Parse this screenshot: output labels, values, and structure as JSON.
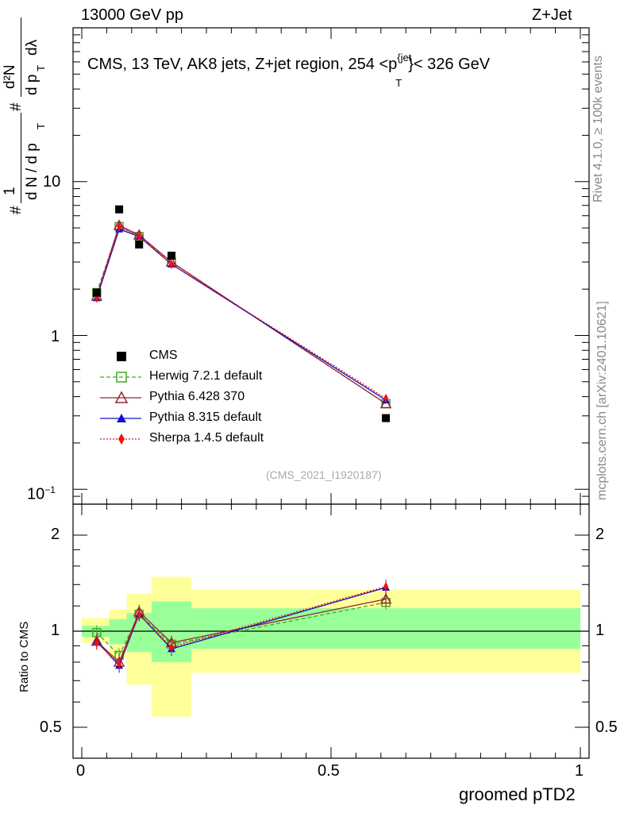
{
  "header": {
    "left": "13000 GeV pp",
    "right": "Z+Jet"
  },
  "side_labels": {
    "rivet": "Rivet 4.1.0, ≥ 100k events",
    "mcplots": "mcplots.cern.ch [arXiv:2401.10621]"
  },
  "main_panel": {
    "title_prefix": "CMS, 13 TeV, AK8 jets, Z+jet region, 254 <p",
    "title_sub": "T",
    "title_sup": "{jet",
    "title_suffix": "}< 326 GeV",
    "watermark": "(CMS_2021_I1920187)",
    "ylabel_num": "1",
    "ylabel_den": "d N / d p",
    "ylabel_frac_num": "d²N",
    "ylabel_frac_den": "d p",
    "ylabel_lambda": "dλ",
    "ylabel_hash": "#"
  },
  "ratio_panel": {
    "ylabel": "Ratio to CMS"
  },
  "xaxis": {
    "label": "groomed pTD2",
    "ticks": [
      "0",
      "0.5",
      "1"
    ]
  },
  "legend": [
    {
      "name": "CMS",
      "color": "#000000",
      "style": "square"
    },
    {
      "name": "Herwig 7.2.1 default",
      "color": "#44aa22",
      "style": "open-square"
    },
    {
      "name": "Pythia 6.428 370",
      "color": "#992233",
      "style": "open-triangle"
    },
    {
      "name": "Pythia 8.315 default",
      "color": "#1111cc",
      "style": "filled-triangle"
    },
    {
      "name": "Sherpa 1.4.5 default",
      "color": "#ee1111",
      "style": "diamond"
    }
  ],
  "chart_data": [
    {
      "type": "line",
      "title": "CMS, 13 TeV, AK8 jets, Z+jet region, 254 < pT jet < 326 GeV",
      "xlabel": "groomed pTD2",
      "ylabel": "1/(dN/dpT) d2N/(dpT dlambda)",
      "yscale": "log",
      "xlim": [
        0,
        1
      ],
      "ylim": [
        0.08,
        100
      ],
      "ytick_labels": [
        "10−1",
        "1",
        "10"
      ],
      "x": [
        0.03,
        0.075,
        0.115,
        0.18,
        0.61
      ],
      "series": [
        {
          "name": "CMS",
          "values": [
            1.9,
            6.6,
            3.9,
            3.3,
            0.29
          ]
        },
        {
          "name": "Herwig 7.2.1 default",
          "values": [
            1.9,
            5.1,
            4.4,
            3.0,
            0.36
          ]
        },
        {
          "name": "Pythia 6.428 370",
          "values": [
            1.8,
            5.2,
            4.5,
            3.0,
            0.36
          ]
        },
        {
          "name": "Pythia 8.315 default",
          "values": [
            1.75,
            4.9,
            4.4,
            2.9,
            0.38
          ]
        },
        {
          "name": "Sherpa 1.4.5 default",
          "values": [
            1.75,
            5.1,
            4.4,
            2.9,
            0.39
          ]
        }
      ]
    },
    {
      "type": "line",
      "title": "",
      "xlabel": "groomed pTD2",
      "ylabel": "Ratio to CMS",
      "xlim": [
        0,
        1
      ],
      "ylim": [
        0.4,
        2.3
      ],
      "ytick_labels": [
        "0.5",
        "1",
        "2"
      ],
      "x": [
        0.03,
        0.075,
        0.115,
        0.18,
        0.61
      ],
      "band_edges": [
        0.0,
        0.055,
        0.09,
        0.14,
        0.22,
        1.0
      ],
      "stat_band": {
        "lower": [
          0.96,
          0.91,
          0.86,
          0.8,
          0.88
        ],
        "upper": [
          1.04,
          1.09,
          1.14,
          1.24,
          1.18
        ]
      },
      "total_band": {
        "lower": [
          0.92,
          0.82,
          0.68,
          0.54,
          0.74
        ],
        "upper": [
          1.1,
          1.17,
          1.31,
          1.48,
          1.35
        ]
      },
      "series": [
        {
          "name": "Herwig 7.2.1 default",
          "values": [
            0.99,
            0.84,
            1.13,
            0.91,
            1.23
          ]
        },
        {
          "name": "Pythia 6.428 370",
          "values": [
            0.93,
            0.8,
            1.15,
            0.92,
            1.26
          ]
        },
        {
          "name": "Pythia 8.315 default",
          "values": [
            0.93,
            0.78,
            1.13,
            0.88,
            1.37
          ]
        },
        {
          "name": "Sherpa 1.4.5 default",
          "values": [
            0.92,
            0.79,
            1.13,
            0.89,
            1.38
          ]
        }
      ]
    }
  ]
}
